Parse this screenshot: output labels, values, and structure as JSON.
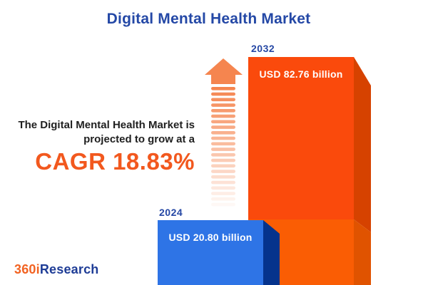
{
  "title": "Digital Mental Health Market",
  "subtitle": {
    "line1": "The Digital Mental Health Market is",
    "line2": "projected to grow at a",
    "cagr_label": "CAGR 18.83%"
  },
  "chart_data": {
    "type": "bar",
    "title": "Digital Mental Health Market",
    "categories": [
      "2024",
      "2032"
    ],
    "values": [
      20.8,
      82.76
    ],
    "unit": "USD billion",
    "value_labels": [
      "USD 20.80 billion",
      "USD 82.76 billion"
    ],
    "cagr_percent": 18.83,
    "style": "3d-box-infographic",
    "grid": false,
    "legend": "none",
    "ylim": [
      0,
      90
    ]
  },
  "bars": {
    "b2024": {
      "year": "2024",
      "value_label": "USD 20.80 billion",
      "front_color": "#2E74E6",
      "side_color": "#05338C"
    },
    "b2032": {
      "year": "2032",
      "value_label": "USD 82.76 billion",
      "front_color": "#FA4A0C",
      "side_color": "#D64200",
      "base_front_color": "#FA5D04",
      "base_side_color": "#E05300"
    }
  },
  "arrow": {
    "icon": "growth-up-arrow-icon",
    "color": "#F5854F",
    "stripe_count": 22
  },
  "logo": {
    "text_orange": "360i",
    "text_blue": "Research",
    "orange": "#F26322",
    "blue": "#1E3C96"
  },
  "colors": {
    "title": "#2448A6",
    "year_label": "#2547A4",
    "description_text": "#1F1F1F",
    "cagr": "#F2581E",
    "value_text": "#FFFFFF",
    "background": "#FFFFFF"
  }
}
